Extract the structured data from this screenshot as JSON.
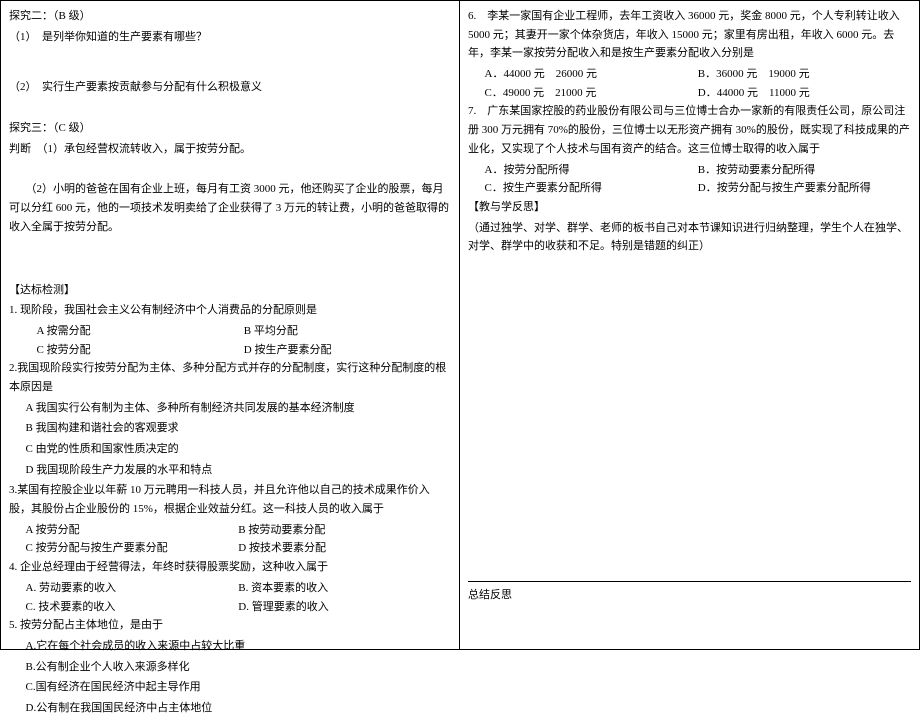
{
  "left": {
    "tanjiu2_title": "探究二：（B 级）",
    "tanjiu2_q1": "（1）　是列举你知道的生产要素有哪些？",
    "tanjiu2_q2": "（2）　实行生产要素按贡献参与分配有什么积极意义",
    "tanjiu3_title": "探究三：（C 级）",
    "tanjiu3_j": "判断　（1）承包经营权流转收入，属于按劳分配。",
    "tanjiu3_p2": "（2）小明的爸爸在国有企业上班，每月有工资 3000 元，他还购买了企业的股票，每月可以分红 600 元，他的一项技术发明卖给了企业获得了 3 万元的转让费，小明的爸爸取得的收入全属于按劳分配。",
    "dabiao_title": "【达标检测】",
    "q1": "1. 现阶段，我国社会主义公有制经济中个人消费品的分配原则是",
    "q1a": "A 按需分配",
    "q1b": "B 平均分配",
    "q1c": "C 按劳分配",
    "q1d": "D 按生产要素分配",
    "q2": "2.我国现阶段实行按劳分配为主体、多种分配方式并存的分配制度，实行这种分配制度的根本原因是",
    "q2a": "A 我国实行公有制为主体、多种所有制经济共同发展的基本经济制度",
    "q2b": "B 我国构建和谐社会的客观要求",
    "q2c": "C 由党的性质和国家性质决定的",
    "q2d": "D 我国现阶段生产力发展的水平和特点",
    "q3": "3.某国有控股企业以年薪 10 万元聘用一科技人员，并且允许他以自己的技术成果作价入股，其股份占企业股份的 15%，根据企业效益分红。这一科技人员的收入属于",
    "q3a": "A 按劳分配",
    "q3b": "B 按劳动要素分配",
    "q3c": "C 按劳分配与按生产要素分配",
    "q3d": "D 按技术要素分配",
    "q4": "4. 企业总经理由于经营得法，年终时获得股票奖励，这种收入属于",
    "q4a": "A. 劳动要素的收入",
    "q4b": "B. 资本要素的收入",
    "q4c": "C. 技术要素的收入",
    "q4d": "D. 管理要素的收入",
    "q5": "5. 按劳分配占主体地位，是由于",
    "q5a": "A.它在每个社会成员的收入来源中占较大比重",
    "q5b": "B.公有制企业个人收入来源多样化",
    "q5c": "C.国有经济在国民经济中起主导作用",
    "q5d": "D.公有制在我国国民经济中占主体地位"
  },
  "right": {
    "q6": "6.　李某一家国有企业工程师，去年工资收入 36000 元，奖金 8000 元，个人专利转让收入 5000 元；其妻开一家个体杂货店，年收入 15000 元；家里有房出租，年收入 6000 元。去年，李某一家按劳分配收入和是按生产要素分配收入分别是",
    "q6a": "A．44000 元　26000 元",
    "q6b": "B．36000 元　19000 元",
    "q6c": "C．49000 元　21000 元",
    "q6d": "D．44000 元　11000 元",
    "q7": "7.　广东某国家控股的药业股份有限公司与三位博士合办一家新的有限责任公司，原公司注册 300 万元拥有 70%的股份，三位博士以无形资产拥有 30%的股份，既实现了科技成果的产业化，又实现了个人技术与国有资产的结合。这三位博士取得的收入属于",
    "q7a": "A．按劳分配所得",
    "q7b": "B．按劳动要素分配所得",
    "q7c": "C．按生产要素分配所得",
    "q7d": "D．按劳分配与按生产要素分配所得",
    "reflect_title": "【教与学反思】",
    "reflect_body": "（通过独学、对学、群学、老师的板书自己对本节课知识进行归纳整理，学生个人在独学、对学、群学中的收获和不足。特别是错题的纠正）",
    "summary": "总结反思"
  }
}
